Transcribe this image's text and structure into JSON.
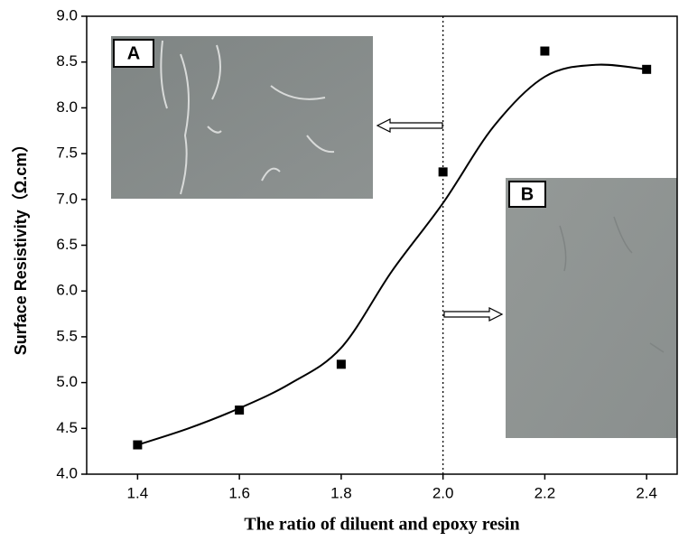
{
  "chart_data": {
    "type": "scatter",
    "xlabel": "The ratio of diluent and epoxy resin",
    "ylabel": "Surface Resistivity（Ω.cm）",
    "xlim": [
      1.3,
      2.46
    ],
    "ylim": [
      4.0,
      9.0
    ],
    "xticks": [
      1.4,
      1.6,
      1.8,
      {
        "value": 2,
        "label": "2.0"
      },
      2.2,
      2.4
    ],
    "yticks": [
      {
        "value": 4,
        "label": "4.0"
      },
      4.5,
      {
        "value": 5,
        "label": "5.0"
      },
      5.5,
      {
        "value": 6,
        "label": "6.0"
      },
      6.5,
      {
        "value": 7,
        "label": "7.0"
      },
      7.5,
      {
        "value": 8,
        "label": "8.0"
      },
      8.5,
      {
        "value": 9,
        "label": "9.0"
      }
    ],
    "series": [
      {
        "style": "markers",
        "color": "#000000",
        "x": [
          1.4,
          1.6,
          1.8,
          2.0,
          2.2,
          2.4
        ],
        "values": [
          4.32,
          4.7,
          5.2,
          7.3,
          8.62,
          8.42
        ]
      },
      {
        "style": "line",
        "color": "#000000",
        "x": [
          1.4,
          1.5,
          1.6,
          1.7,
          1.8,
          1.9,
          2.0,
          2.1,
          2.2,
          2.3,
          2.4
        ],
        "values": [
          4.32,
          4.5,
          4.72,
          4.99,
          5.38,
          6.22,
          6.96,
          7.8,
          8.34,
          8.47,
          8.42
        ]
      }
    ],
    "vline": 2.0,
    "insets": [
      "A",
      "B"
    ]
  }
}
